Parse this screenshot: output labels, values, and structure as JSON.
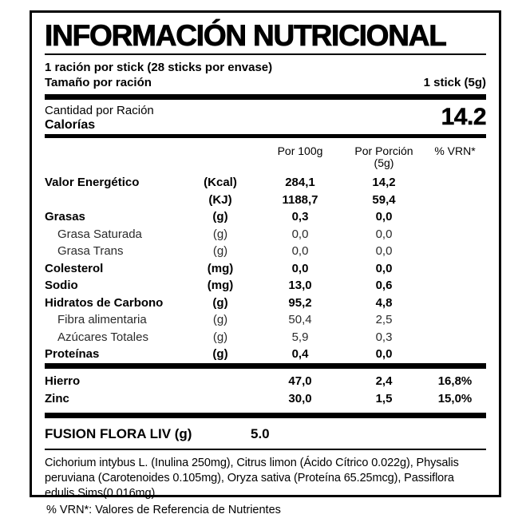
{
  "colors": {
    "text": "#000000",
    "background": "#ffffff"
  },
  "title": "INFORMACIÓN NUTRICIONAL",
  "serving": {
    "line1": "1 ración por stick (28 sticks por envase)",
    "size_label": "Tamaño por ración",
    "size_value": "1 stick (5g)"
  },
  "calories": {
    "label_top": "Cantidad por Ración",
    "label_bottom": "Calorías",
    "value": "14.2"
  },
  "table": {
    "headers": {
      "per100": "Por 100g",
      "portion": "Por Porción",
      "portion_sub": "(5g)",
      "vrn": "% VRN*"
    },
    "rows": [
      {
        "label": "Valor Energético",
        "unit": "(Kcal)",
        "per100": "284,1",
        "portion": "14,2",
        "vrn": ""
      },
      {
        "label": "",
        "unit": "(KJ)",
        "per100": "1188,7",
        "portion": "59,4",
        "vrn": ""
      },
      {
        "label": "Grasas",
        "unit": "(g)",
        "per100": "0,3",
        "portion": "0,0",
        "vrn": ""
      },
      {
        "label": "Grasa Saturada",
        "unit": "(g)",
        "per100": "0,0",
        "portion": "0,0",
        "vrn": ""
      },
      {
        "label": "Grasa Trans",
        "unit": "(g)",
        "per100": "0,0",
        "portion": "0,0",
        "vrn": ""
      },
      {
        "label": "Colesterol",
        "unit": "(mg)",
        "per100": "0,0",
        "portion": "0,0",
        "vrn": ""
      },
      {
        "label": "Sodio",
        "unit": "(mg)",
        "per100": "13,0",
        "portion": "0,6",
        "vrn": ""
      },
      {
        "label": "Hidratos de Carbono",
        "unit": "(g)",
        "per100": "95,2",
        "portion": "4,8",
        "vrn": ""
      },
      {
        "label": "Fibra alimentaria",
        "unit": "(g)",
        "per100": "50,4",
        "portion": "2,5",
        "vrn": ""
      },
      {
        "label": "Azúcares Totales",
        "unit": "(g)",
        "per100": "5,9",
        "portion": "0,3",
        "vrn": ""
      },
      {
        "label": "Proteínas",
        "unit": "(g)",
        "per100": "0,4",
        "portion": "0,0",
        "vrn": ""
      }
    ],
    "minerals": [
      {
        "label": "Hierro",
        "per100": "47,0",
        "portion": "2,4",
        "vrn": "16,8%"
      },
      {
        "label": "Zinc",
        "per100": "30,0",
        "portion": "1,5",
        "vrn": "15,0%"
      }
    ]
  },
  "fusion": {
    "label": "FUSION FLORA LIV (g)",
    "value": "5.0"
  },
  "ingredients": "Cichorium intybus L. (Inulina 250mg), Citrus limon (Ácido Cítrico 0.022g), Physalis peruviana (Carotenoides 0.105mg), Oryza sativa (Proteína 65.25mcg), Passiflora edulis Sims(0.016mg).",
  "footnote": "% VRN*: Valores de Referencia de Nutrientes"
}
